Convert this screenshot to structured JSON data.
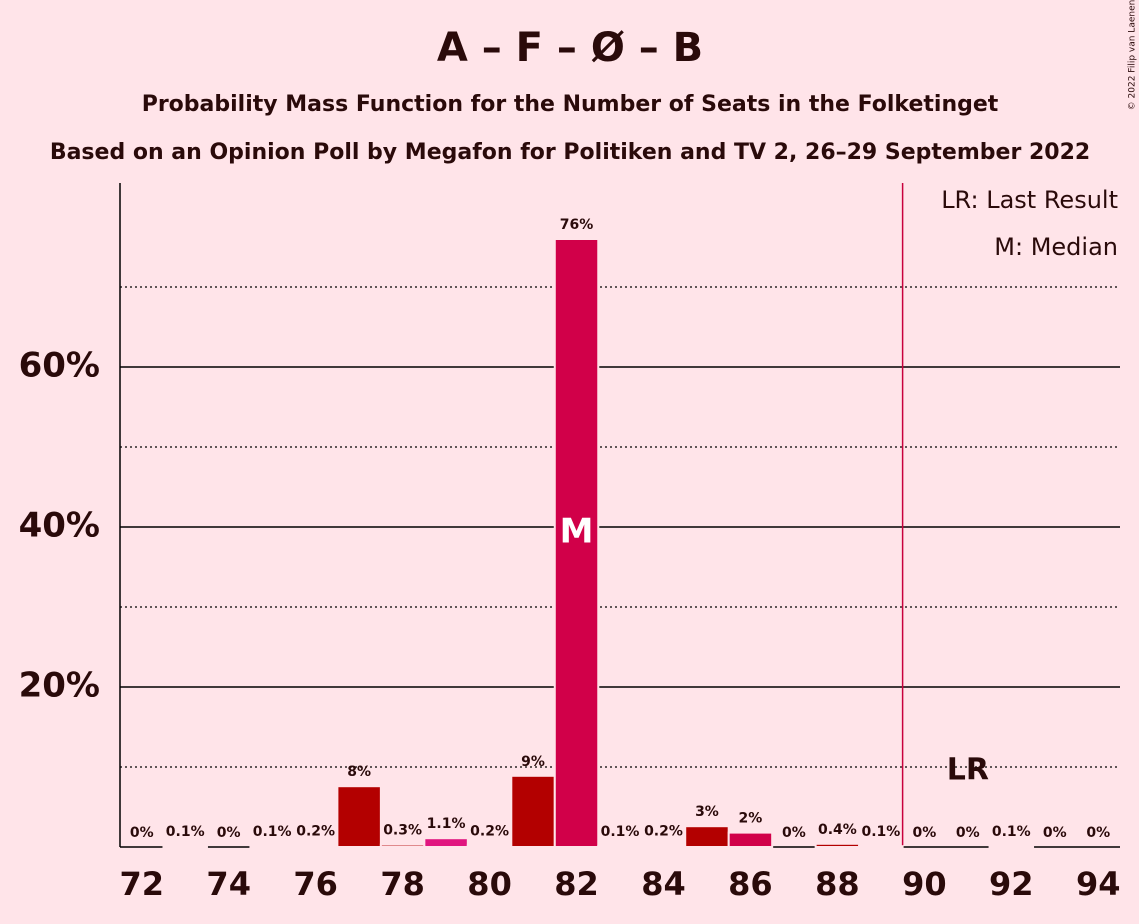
{
  "chart_data": {
    "type": "bar",
    "title": "A – F – Ø – B",
    "subtitle": "Probability Mass Function for the Number of Seats in the Folketinget",
    "caption": "Based on an Opinion Poll by Megafon for Politiken and TV 2, 26–29 September 2022",
    "copyright": "© 2022 Filip van Laenen",
    "x": [
      72,
      73,
      74,
      75,
      76,
      77,
      78,
      79,
      80,
      81,
      82,
      83,
      84,
      85,
      86,
      87,
      88,
      89,
      90,
      91,
      92,
      93,
      94
    ],
    "values": [
      0,
      0.1,
      0,
      0.1,
      0.2,
      7.6,
      0.3,
      1.1,
      0.2,
      8.9,
      76,
      0.1,
      0.2,
      2.6,
      1.8,
      0,
      0.4,
      0.1,
      0,
      0,
      0.1,
      0,
      0
    ],
    "value_labels": [
      "0%",
      "0.1%",
      "0%",
      "0.1%",
      "0.2%",
      "8%",
      "0.3%",
      "1.1%",
      "0.2%",
      "9%",
      "76%",
      "0.1%",
      "0.2%",
      "3%",
      "2%",
      "0%",
      "0.4%",
      "0.1%",
      "0%",
      "0%",
      "0.1%",
      "0%",
      "0%"
    ],
    "colors": [
      "#b30000",
      "#b30000",
      "#b30000",
      "#b30000",
      "#b30000",
      "#b30000",
      "#b30000",
      "#e0157f",
      "#b30000",
      "#b30000",
      "#d10049",
      "#b30000",
      "#b30000",
      "#b30000",
      "#d10049",
      "#b30000",
      "#b30000",
      "#b30000",
      "#b30000",
      "#b30000",
      "#b30000",
      "#b30000",
      "#b30000"
    ],
    "xlim": [
      71.5,
      94.5
    ],
    "xticks": [
      72,
      74,
      76,
      78,
      80,
      82,
      84,
      86,
      88,
      90,
      92,
      94
    ],
    "ylim": [
      0,
      83
    ],
    "yticks": [
      {
        "value": 20,
        "label": "20%"
      },
      {
        "value": 40,
        "label": "40%"
      },
      {
        "value": 60,
        "label": "60%"
      }
    ],
    "minor_grid": [
      10,
      30,
      50,
      70
    ],
    "median": 82,
    "median_label": "M",
    "last_result": 91,
    "last_result_label": "LR",
    "last_result_y": 10,
    "majority": 90,
    "majority_color": "#c8003c",
    "legend": [
      "LR: Last Result",
      "M: Median"
    ]
  }
}
